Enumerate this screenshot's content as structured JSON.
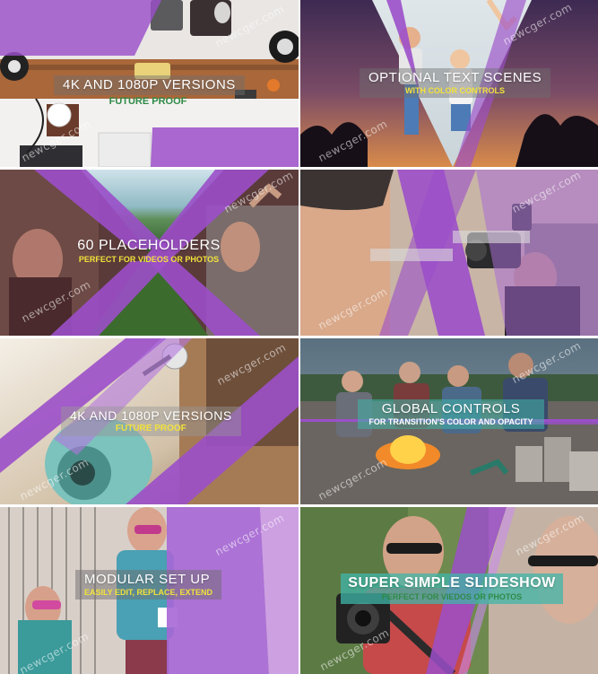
{
  "colors": {
    "accent_purple": "#9b4fc9",
    "accent_teal": "#3fb5a8",
    "caption_bg_grey": "rgba(120,120,120,0.55)",
    "sub_green": "#2f8a47",
    "sub_yellow": "#f2e23a"
  },
  "watermark": "newcger.com",
  "tiles": [
    {
      "title": "4K AND 1080P VERSIONS",
      "subtitle": "FUTURE PROOF"
    },
    {
      "title": "OPTIONAL TEXT SCENES",
      "subtitle": "WITH COLOR CONTROLS"
    },
    {
      "title": "60 PLACEHOLDERS",
      "subtitle": "PERFECT FOR VIDEOS OR PHOTOS"
    },
    {
      "title": "",
      "subtitle": ""
    },
    {
      "title": "4K AND 1080P VERSIONS",
      "subtitle": "FUTURE PROOF"
    },
    {
      "title": "GLOBAL CONTROLS",
      "subtitle": "FOR TRANSITION'S COLOR AND OPACITY"
    },
    {
      "title": "MODULAR SET UP",
      "subtitle": "EASILY EDIT, REPLACE, EXTEND"
    },
    {
      "title": "SUPER SIMPLE SLIDESHOW",
      "subtitle": "PERFECT FOR VIEDOS OR PHOTOS"
    }
  ]
}
